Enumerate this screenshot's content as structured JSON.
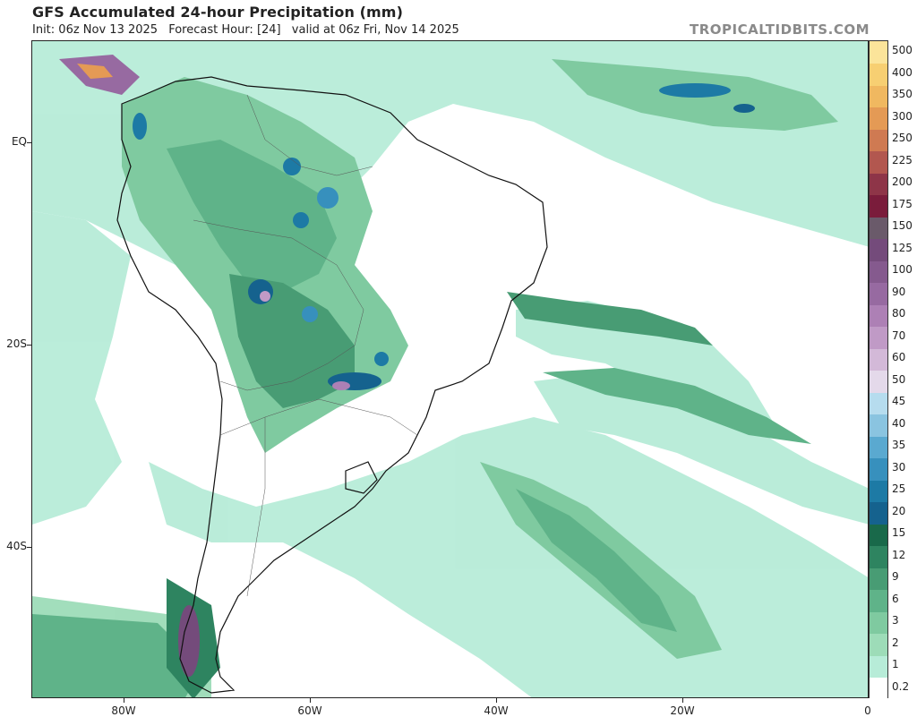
{
  "header": {
    "title": "GFS Accumulated 24-hour Precipitation (mm)",
    "init": "Init: 06z Nov 13 2025",
    "forecast_hour": "Forecast Hour: [24]",
    "valid": "valid at 06z Fri, Nov 14 2025",
    "brand": "TROPICALTIDBITS.COM"
  },
  "map": {
    "lat_labels": [
      "EQ",
      "20S",
      "40S"
    ],
    "lon_labels": [
      "80W",
      "60W",
      "40W",
      "20W",
      "0"
    ],
    "land_color": "#ffffff",
    "ocean_color": "#ffffff",
    "border_color": "#111111"
  },
  "colorbar": {
    "levels": [
      "0.2",
      "1",
      "2",
      "3",
      "6",
      "9",
      "12",
      "15",
      "20",
      "25",
      "30",
      "35",
      "40",
      "45",
      "50",
      "60",
      "70",
      "80",
      "90",
      "100",
      "125",
      "150",
      "175",
      "200",
      "225",
      "250",
      "300",
      "350",
      "400",
      "500"
    ],
    "colors": [
      "#ffffff",
      "#b7ecd8",
      "#9ddcb8",
      "#7fcaa0",
      "#5fb389",
      "#489c74",
      "#2e8460",
      "#19694a",
      "#15628e",
      "#1d7aa5",
      "#3790bd",
      "#5aa9d0",
      "#8ac4e0",
      "#b6dcee",
      "#e4d9ea",
      "#d3b9d8",
      "#c09ac6",
      "#ad80b5",
      "#976aa1",
      "#855a8e",
      "#744b7b",
      "#6a5a6a",
      "#7a1c3b",
      "#8e3548",
      "#b2574f",
      "#cf7a52",
      "#e49a55",
      "#f0b860",
      "#f7cf72",
      "#fbe49a"
    ]
  }
}
